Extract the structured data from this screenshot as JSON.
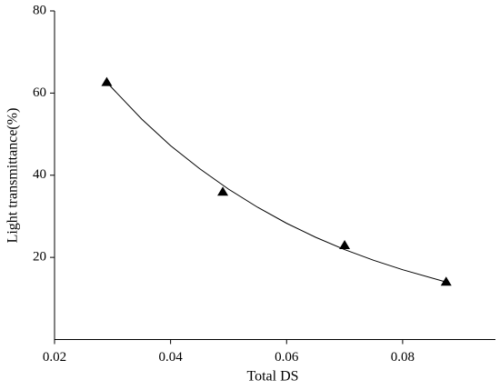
{
  "chart_data": {
    "type": "scatter",
    "x_label": "Total DS",
    "y_label": "Light transmittance(%)",
    "xlim": [
      0.02,
      0.096
    ],
    "xticks": [
      0.02,
      0.04,
      0.06,
      0.08
    ],
    "ylim": [
      0,
      80
    ],
    "yticks": [
      20,
      40,
      60,
      80
    ],
    "series": [
      {
        "color": "#000000",
        "marker": "triangle",
        "x": [
          0.029,
          0.049,
          0.07,
          0.0875
        ],
        "values": [
          62.6,
          35.9,
          22.9,
          14.0
        ]
      },
      {
        "color": "#000000",
        "marker": "line",
        "x": [
          0.029,
          0.035,
          0.04,
          0.045,
          0.05,
          0.055,
          0.06,
          0.065,
          0.07,
          0.075,
          0.08,
          0.0875
        ],
        "values": [
          62.6,
          53.7,
          47.2,
          41.6,
          36.6,
          32.2,
          28.3,
          24.9,
          21.9,
          19.3,
          17.0,
          14.0
        ]
      }
    ]
  }
}
